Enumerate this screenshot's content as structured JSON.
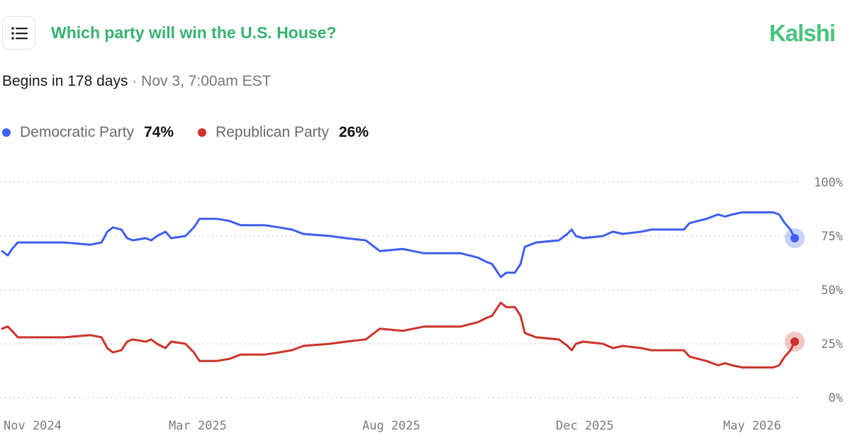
{
  "header": {
    "title": "Which party will win the U.S. House?",
    "brand": "Kalshi",
    "menu_icon": "list-icon"
  },
  "event": {
    "begins": "Begins in 178 days",
    "separator": "·",
    "when": "Nov 3, 7:00am EST"
  },
  "legend": [
    {
      "name": "Democratic Party",
      "value": "74%",
      "color": "#3d5ef0"
    },
    {
      "name": "Republican Party",
      "value": "26%",
      "color": "#cc3329"
    }
  ],
  "chart_data": {
    "type": "line",
    "title": "",
    "xlabel": "",
    "ylabel": "",
    "x_ticks": [
      "Nov 2024",
      "Mar 2025",
      "Aug 2025",
      "Dec 2025",
      "May 2026"
    ],
    "x_range": [
      "2024-11-01",
      "2026-05-15"
    ],
    "y_ticks": [
      "100%",
      "75%",
      "50%",
      "25%",
      "0%"
    ],
    "ylim": [
      0,
      100
    ],
    "grid": "horizontal dotted",
    "y_axis_position": "right",
    "series": [
      {
        "name": "Democratic Party",
        "color": "#3d5ef0",
        "points": [
          [
            "2024-11-01",
            68
          ],
          [
            "2024-11-05",
            66
          ],
          [
            "2024-11-08",
            69
          ],
          [
            "2024-11-12",
            72
          ],
          [
            "2024-12-15",
            72
          ],
          [
            "2025-01-02",
            71
          ],
          [
            "2025-01-10",
            72
          ],
          [
            "2025-01-14",
            77
          ],
          [
            "2025-01-18",
            79
          ],
          [
            "2025-01-24",
            78
          ],
          [
            "2025-01-28",
            74
          ],
          [
            "2025-02-01",
            73
          ],
          [
            "2025-02-10",
            74
          ],
          [
            "2025-02-14",
            73
          ],
          [
            "2025-02-18",
            75
          ],
          [
            "2025-02-24",
            77
          ],
          [
            "2025-02-28",
            74
          ],
          [
            "2025-03-10",
            75
          ],
          [
            "2025-03-16",
            79
          ],
          [
            "2025-03-20",
            83
          ],
          [
            "2025-04-01",
            83
          ],
          [
            "2025-04-10",
            82
          ],
          [
            "2025-04-18",
            80
          ],
          [
            "2025-05-05",
            80
          ],
          [
            "2025-05-15",
            79
          ],
          [
            "2025-05-24",
            78
          ],
          [
            "2025-06-01",
            76
          ],
          [
            "2025-06-20",
            75
          ],
          [
            "2025-07-01",
            74
          ],
          [
            "2025-07-15",
            73
          ],
          [
            "2025-07-25",
            68
          ],
          [
            "2025-08-10",
            69
          ],
          [
            "2025-08-25",
            67
          ],
          [
            "2025-09-20",
            67
          ],
          [
            "2025-09-26",
            66
          ],
          [
            "2025-10-02",
            65
          ],
          [
            "2025-10-08",
            63
          ],
          [
            "2025-10-12",
            62
          ],
          [
            "2025-10-16",
            58
          ],
          [
            "2025-10-18",
            56
          ],
          [
            "2025-10-22",
            58
          ],
          [
            "2025-10-28",
            58
          ],
          [
            "2025-11-01",
            62
          ],
          [
            "2025-11-04",
            70
          ],
          [
            "2025-11-08",
            71
          ],
          [
            "2025-11-12",
            72
          ],
          [
            "2025-11-28",
            73
          ],
          [
            "2025-12-04",
            76
          ],
          [
            "2025-12-07",
            78
          ],
          [
            "2025-12-10",
            75
          ],
          [
            "2025-12-15",
            74
          ],
          [
            "2025-12-29",
            75
          ],
          [
            "2026-01-05",
            77
          ],
          [
            "2026-01-12",
            76
          ],
          [
            "2026-01-25",
            77
          ],
          [
            "2026-02-01",
            78
          ],
          [
            "2026-02-24",
            78
          ],
          [
            "2026-02-28",
            81
          ],
          [
            "2026-03-06",
            82
          ],
          [
            "2026-03-12",
            83
          ],
          [
            "2026-03-20",
            85
          ],
          [
            "2026-03-25",
            84
          ],
          [
            "2026-03-30",
            85
          ],
          [
            "2026-04-06",
            86
          ],
          [
            "2026-04-28",
            86
          ],
          [
            "2026-05-02",
            85
          ],
          [
            "2026-05-06",
            81
          ],
          [
            "2026-05-10",
            78
          ],
          [
            "2026-05-13",
            74
          ]
        ]
      },
      {
        "name": "Republican Party",
        "color": "#cc3329",
        "points": [
          [
            "2024-11-01",
            32
          ],
          [
            "2024-11-05",
            33
          ],
          [
            "2024-11-08",
            31
          ],
          [
            "2024-11-12",
            28
          ],
          [
            "2024-12-15",
            28
          ],
          [
            "2025-01-02",
            29
          ],
          [
            "2025-01-10",
            28
          ],
          [
            "2025-01-14",
            23
          ],
          [
            "2025-01-18",
            21
          ],
          [
            "2025-01-24",
            22
          ],
          [
            "2025-01-28",
            26
          ],
          [
            "2025-02-01",
            27
          ],
          [
            "2025-02-10",
            26
          ],
          [
            "2025-02-14",
            27
          ],
          [
            "2025-02-18",
            25
          ],
          [
            "2025-02-24",
            23
          ],
          [
            "2025-02-28",
            26
          ],
          [
            "2025-03-10",
            25
          ],
          [
            "2025-03-16",
            21
          ],
          [
            "2025-03-20",
            17
          ],
          [
            "2025-04-01",
            17
          ],
          [
            "2025-04-10",
            18
          ],
          [
            "2025-04-18",
            20
          ],
          [
            "2025-05-05",
            20
          ],
          [
            "2025-05-15",
            21
          ],
          [
            "2025-05-24",
            22
          ],
          [
            "2025-06-01",
            24
          ],
          [
            "2025-06-20",
            25
          ],
          [
            "2025-07-01",
            26
          ],
          [
            "2025-07-15",
            27
          ],
          [
            "2025-07-25",
            32
          ],
          [
            "2025-08-10",
            31
          ],
          [
            "2025-08-25",
            33
          ],
          [
            "2025-09-20",
            33
          ],
          [
            "2025-09-26",
            34
          ],
          [
            "2025-10-02",
            35
          ],
          [
            "2025-10-08",
            37
          ],
          [
            "2025-10-12",
            38
          ],
          [
            "2025-10-16",
            42
          ],
          [
            "2025-10-18",
            44
          ],
          [
            "2025-10-22",
            42
          ],
          [
            "2025-10-28",
            42
          ],
          [
            "2025-11-01",
            38
          ],
          [
            "2025-11-04",
            30
          ],
          [
            "2025-11-08",
            29
          ],
          [
            "2025-11-12",
            28
          ],
          [
            "2025-11-28",
            27
          ],
          [
            "2025-12-04",
            24
          ],
          [
            "2025-12-07",
            22
          ],
          [
            "2025-12-10",
            25
          ],
          [
            "2025-12-15",
            26
          ],
          [
            "2025-12-29",
            25
          ],
          [
            "2026-01-05",
            23
          ],
          [
            "2026-01-12",
            24
          ],
          [
            "2026-01-25",
            23
          ],
          [
            "2026-02-01",
            22
          ],
          [
            "2026-02-24",
            22
          ],
          [
            "2026-02-28",
            19
          ],
          [
            "2026-03-06",
            18
          ],
          [
            "2026-03-12",
            17
          ],
          [
            "2026-03-20",
            15
          ],
          [
            "2026-03-25",
            16
          ],
          [
            "2026-03-30",
            15
          ],
          [
            "2026-04-06",
            14
          ],
          [
            "2026-04-28",
            14
          ],
          [
            "2026-05-02",
            15
          ],
          [
            "2026-05-06",
            19
          ],
          [
            "2026-05-10",
            22
          ],
          [
            "2026-05-13",
            26
          ]
        ]
      }
    ]
  }
}
